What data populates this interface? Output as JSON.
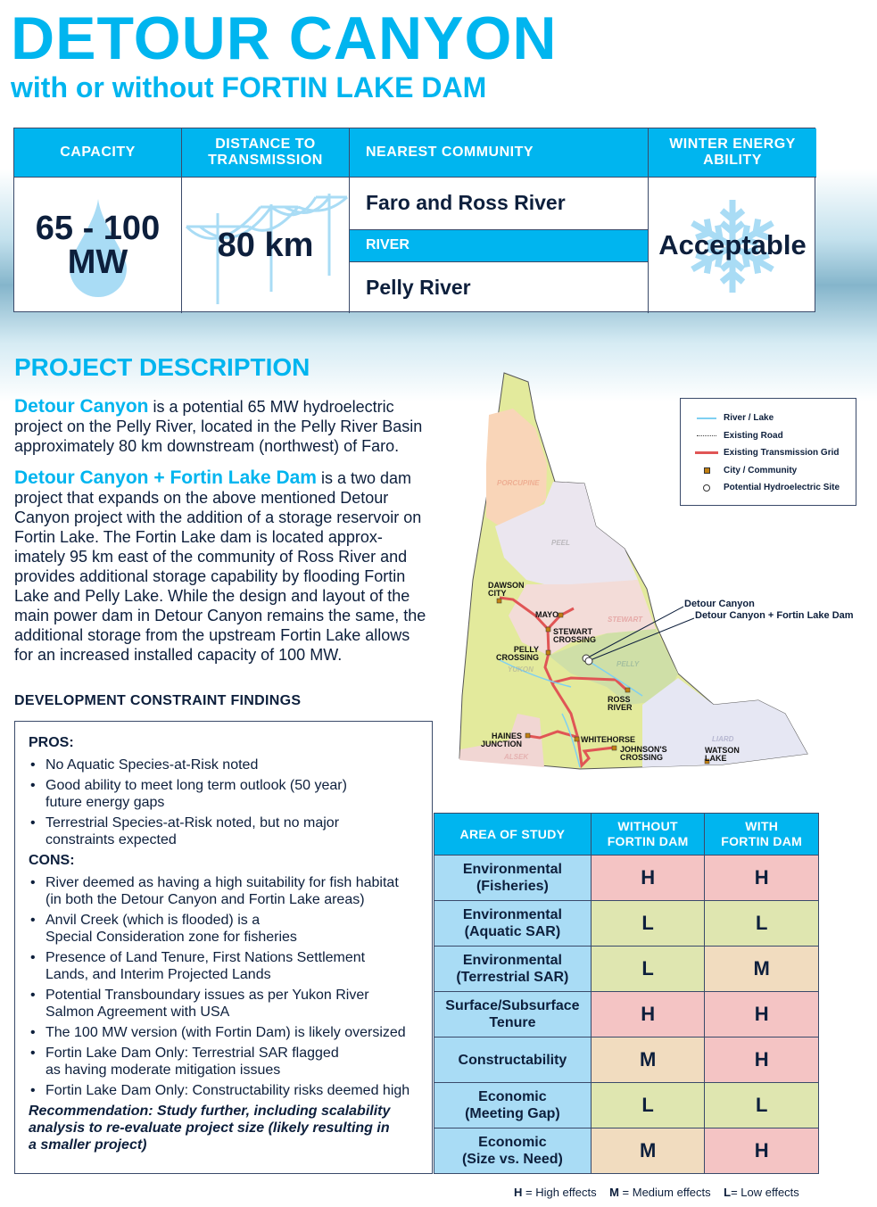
{
  "header": {
    "title": "DETOUR CANYON",
    "subtitle": "with or without FORTIN LAKE DAM"
  },
  "facts": {
    "capacity_label": "CAPACITY",
    "capacity_value_1": "65 - 100",
    "capacity_value_2": "MW",
    "distance_label_1": "DISTANCE TO",
    "distance_label_2": "TRANSMISSION",
    "distance_value": "80 km",
    "community_label": "NEAREST COMMUNITY",
    "community_value": "Faro and Ross River",
    "river_label": "RIVER",
    "river_value": "Pelly River",
    "winter_label_1": "WINTER ENERGY",
    "winter_label_2": "ABILITY",
    "winter_value": "Acceptable"
  },
  "description": {
    "heading": "PROJECT DESCRIPTION",
    "p1_highlight": "Detour Canyon",
    "p1_text": " is a potential 65 MW hydroelectric project on the Pelly River, located in the Pelly River Basin approximately 80 km downstream (northwest) of Faro.",
    "p2_highlight": "Detour Canyon + Fortin Lake Dam",
    "p2_text": " is a two dam project that expands on the above mentioned Detour Canyon project with the addition of a storage reservoir on Fortin Lake. The Fortin Lake dam is located approx-imately 95 km east of the community of Ross River and provides additional storage capability by flooding Fortin Lake and Pelly Lake. While the design and layout of the main power dam in Detour Canyon remains the same, the additional storage from the upstream Fortin Lake allows for an increased installed capacity of 100 MW."
  },
  "constraints": {
    "heading": "DEVELOPMENT CONSTRAINT FINDINGS",
    "pros_label": "PROS:",
    "pros": [
      "No Aquatic Species-at-Risk noted",
      "Good ability to meet long term outlook (50 year)\nfuture energy gaps",
      "Terrestrial Species-at-Risk noted, but no major\nconstraints expected"
    ],
    "cons_label": "CONS:",
    "cons": [
      "River deemed as having a high suitability for fish habitat\n(in both the Detour Canyon and Fortin Lake areas)",
      "Anvil Creek (which is flooded) is a\nSpecial Consideration zone for fisheries",
      "Presence of Land Tenure, First Nations Settlement\nLands, and Interim Projected Lands",
      "Potential Transboundary issues as per Yukon River\nSalmon Agreement with USA",
      "The 100 MW version (with Fortin Dam) is likely oversized",
      "Fortin Lake Dam Only: Terrestrial SAR flagged\nas having moderate mitigation issues",
      "Fortin Lake Dam Only: Constructability risks deemed high"
    ],
    "recommendation": "Recommendation: Study further, including scalability\nanalysis to re-evaluate project size (likely resulting in\na smaller project)"
  },
  "map": {
    "legend": [
      "River / Lake",
      "Existing Road",
      "Existing Transmission Grid",
      "City / Community",
      "Potential Hydroelectric Site"
    ],
    "regions": [
      "PORCUPINE",
      "PEEL",
      "STEWART",
      "PELLY",
      "YUKON",
      "LIARD",
      "ALSEK"
    ],
    "communities": [
      "DAWSON\nCITY",
      "MAYO",
      "STEWART\nCROSSING",
      "PELLY\nCROSSING",
      "ROSS\nRIVER",
      "HAINES\nJUNCTION",
      "WHITEHORSE",
      "JOHNSON'S\nCROSSING",
      "WATSON\nLAKE"
    ],
    "callouts": [
      "Detour Canyon",
      "Detour Canyon + Fortin Lake Dam"
    ],
    "colors": {
      "river": "#7fd0f2",
      "grid": "#e05555",
      "community": "#c17f12"
    }
  },
  "study": {
    "headers": [
      "AREA OF STUDY",
      "WITHOUT\nFORTIN DAM",
      "WITH\nFORTIN DAM"
    ],
    "rows": [
      {
        "area": "Environmental\n(Fisheries)",
        "without": "H",
        "with": "H"
      },
      {
        "area": "Environmental\n(Aquatic SAR)",
        "without": "L",
        "with": "L"
      },
      {
        "area": "Environmental\n(Terrestrial SAR)",
        "without": "L",
        "with": "M"
      },
      {
        "area": "Surface/Subsurface\nTenure",
        "without": "H",
        "with": "H"
      },
      {
        "area": "Constructability",
        "without": "M",
        "with": "H"
      },
      {
        "area": "Economic\n(Meeting Gap)",
        "without": "L",
        "with": "L"
      },
      {
        "area": "Economic\n(Size vs. Need)",
        "without": "M",
        "with": "H"
      }
    ],
    "colors": {
      "H": "#f4c4c4",
      "M": "#f1dcbf",
      "L": "#dfe6b0",
      "area": "#a9dcf5",
      "header": "#00b5ef"
    },
    "key": {
      "h": "H",
      "h_text": " = High effects",
      "m": "M",
      "m_text": " = Medium effects",
      "l": "L",
      "l_text": "= Low effects"
    }
  }
}
